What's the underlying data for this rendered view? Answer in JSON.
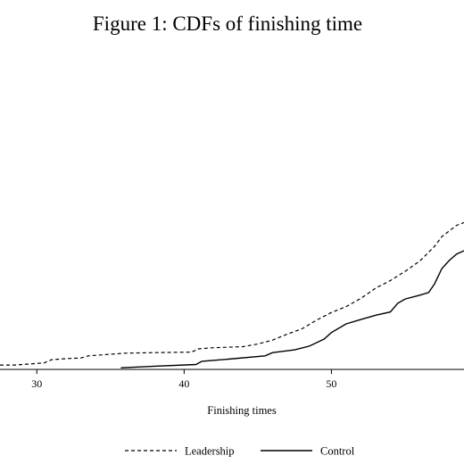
{
  "chart_data": {
    "type": "line",
    "title": "Figure 1: CDFs of finishing time",
    "xlabel": "Finishing times",
    "ylabel": "",
    "xlim": [
      27.5,
      59
    ],
    "ylim": [
      0,
      0.55
    ],
    "xticks": [
      30,
      40,
      50
    ],
    "grid": false,
    "legend_position": "bottom",
    "series": [
      {
        "name": "Leadership",
        "style": "dashed",
        "color": "#000000",
        "points": [
          [
            27.5,
            0.008
          ],
          [
            28.5,
            0.008
          ],
          [
            29.5,
            0.01
          ],
          [
            30.5,
            0.012
          ],
          [
            31,
            0.018
          ],
          [
            32,
            0.02
          ],
          [
            33,
            0.021
          ],
          [
            33.5,
            0.025
          ],
          [
            34.5,
            0.027
          ],
          [
            36,
            0.03
          ],
          [
            38,
            0.031
          ],
          [
            40.5,
            0.032
          ],
          [
            41,
            0.038
          ],
          [
            42,
            0.04
          ],
          [
            43,
            0.041
          ],
          [
            44,
            0.042
          ],
          [
            45,
            0.047
          ],
          [
            46,
            0.054
          ],
          [
            47,
            0.065
          ],
          [
            48,
            0.075
          ],
          [
            49,
            0.091
          ],
          [
            50,
            0.105
          ],
          [
            51,
            0.116
          ],
          [
            52,
            0.131
          ],
          [
            53,
            0.15
          ],
          [
            54,
            0.164
          ],
          [
            55,
            0.181
          ],
          [
            56,
            0.2
          ],
          [
            57,
            0.227
          ],
          [
            57.5,
            0.245
          ],
          [
            58.5,
            0.266
          ],
          [
            59,
            0.271
          ]
        ]
      },
      {
        "name": "Control",
        "style": "solid",
        "color": "#000000",
        "points": [
          [
            35.7,
            0.003
          ],
          [
            38,
            0.006
          ],
          [
            40.8,
            0.009
          ],
          [
            41.2,
            0.015
          ],
          [
            43,
            0.019
          ],
          [
            45.5,
            0.025
          ],
          [
            46,
            0.031
          ],
          [
            47.5,
            0.036
          ],
          [
            48.5,
            0.043
          ],
          [
            49.5,
            0.056
          ],
          [
            50,
            0.068
          ],
          [
            51,
            0.084
          ],
          [
            52,
            0.092
          ],
          [
            53,
            0.1
          ],
          [
            54,
            0.106
          ],
          [
            54.5,
            0.122
          ],
          [
            55,
            0.13
          ],
          [
            56,
            0.137
          ],
          [
            56.6,
            0.142
          ],
          [
            57,
            0.158
          ],
          [
            57.5,
            0.186
          ],
          [
            58,
            0.201
          ],
          [
            58.5,
            0.213
          ],
          [
            59,
            0.219
          ]
        ]
      }
    ]
  }
}
